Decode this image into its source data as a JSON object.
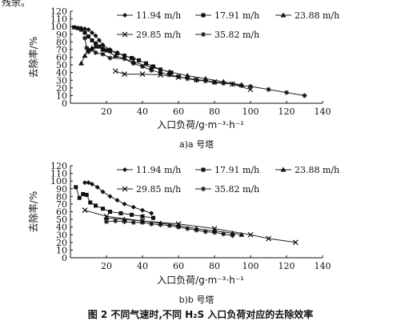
{
  "page": {
    "top_crop_text": "残余。",
    "figure_caption": "图 2    不同气速时,不同 H₂S 入口负荷对应的去除效率"
  },
  "chart_data": [
    {
      "type": "line",
      "subtitle": "a)a 号塔",
      "xlabel": "入口负荷/g·m⁻³·h⁻¹",
      "ylabel": "去除率/%",
      "xlim": [
        0,
        140
      ],
      "ylim": [
        0,
        120
      ],
      "xticks": [
        "20",
        "40",
        "60",
        "80",
        "100",
        "120",
        "140"
      ],
      "yticks": [
        "0",
        "10",
        "20",
        "30",
        "40",
        "50",
        "60",
        "70",
        "80",
        "90",
        "100",
        "110",
        "120"
      ],
      "legend_placement": "top-right",
      "series": [
        {
          "name": "11.94 m/h",
          "marker": "diamond",
          "x": [
            4,
            6,
            8,
            10,
            12,
            14,
            16,
            18,
            22,
            26,
            30,
            35
          ],
          "y": [
            98,
            98,
            97,
            96,
            92,
            88,
            82,
            76,
            70,
            66,
            62,
            58
          ]
        },
        {
          "name": "17.91 m/h",
          "marker": "square",
          "x": [
            2,
            4,
            6,
            8,
            10,
            12,
            14,
            16,
            18,
            20,
            22,
            26,
            30,
            34,
            38,
            42,
            46,
            50,
            56
          ],
          "y": [
            99,
            98,
            96,
            92,
            87,
            82,
            78,
            74,
            71,
            69,
            68,
            65,
            62,
            59,
            56,
            52,
            48,
            44,
            40
          ]
        },
        {
          "name": "23.88 m/h",
          "marker": "triangle",
          "x": [
            6,
            8,
            10,
            12,
            14,
            18,
            25,
            35,
            45,
            55,
            65,
            75,
            85,
            95
          ],
          "y": [
            52,
            62,
            70,
            72,
            74,
            70,
            62,
            54,
            47,
            41,
            36,
            32,
            28,
            24
          ]
        },
        {
          "name": "29.85 m/h",
          "marker": "x",
          "x": [
            25,
            30,
            40,
            50,
            60,
            70,
            80,
            90,
            100
          ],
          "y": [
            42,
            38,
            38,
            37,
            34,
            31,
            28,
            25,
            18
          ]
        },
        {
          "name": "35.82 m/h",
          "marker": "star",
          "x": [
            8,
            9,
            10,
            12,
            14,
            18,
            22,
            30,
            35,
            40,
            45,
            50,
            55,
            60,
            65,
            70,
            75,
            80,
            85,
            90,
            95,
            100,
            110,
            120,
            130
          ],
          "y": [
            85,
            72,
            67,
            70,
            66,
            64,
            59,
            58,
            52,
            48,
            43,
            40,
            37,
            35,
            32,
            30,
            29,
            27,
            26,
            25,
            23,
            22,
            18,
            14,
            10
          ]
        }
      ]
    },
    {
      "type": "line",
      "subtitle": "b)b 号塔",
      "xlabel": "入口负荷/g·m⁻³·h⁻¹",
      "ylabel": "去除率/%",
      "xlim": [
        0,
        140
      ],
      "ylim": [
        0,
        120
      ],
      "xticks": [
        "20",
        "40",
        "60",
        "80",
        "100",
        "120",
        "140"
      ],
      "yticks": [
        "0",
        "10",
        "20",
        "30",
        "40",
        "50",
        "60",
        "70",
        "80",
        "90",
        "100",
        "110",
        "120"
      ],
      "legend_placement": "top-right",
      "series": [
        {
          "name": "11.94 m/h",
          "marker": "diamond",
          "x": [
            8,
            10,
            12,
            15,
            18,
            22,
            26,
            30,
            35,
            40,
            45
          ],
          "y": [
            98,
            98,
            96,
            92,
            86,
            80,
            75,
            70,
            66,
            62,
            58
          ]
        },
        {
          "name": "17.91 m/h",
          "marker": "square",
          "x": [
            3,
            5,
            7,
            9,
            11,
            14,
            18,
            22,
            28,
            34,
            40,
            46
          ],
          "y": [
            92,
            78,
            83,
            82,
            72,
            68,
            64,
            60,
            58,
            56,
            54,
            52
          ]
        },
        {
          "name": "23.88 m/h",
          "marker": "triangle",
          "x": [
            20,
            30,
            40,
            50,
            60,
            70,
            80,
            90,
            95
          ],
          "y": [
            52,
            50,
            48,
            45,
            42,
            38,
            35,
            32,
            30
          ]
        },
        {
          "name": "29.85 m/h",
          "marker": "x",
          "x": [
            8,
            20,
            40,
            60,
            80,
            100,
            110,
            125
          ],
          "y": [
            62,
            54,
            48,
            44,
            38,
            30,
            25,
            20
          ]
        },
        {
          "name": "35.82 m/h",
          "marker": "star",
          "x": [
            20,
            25,
            30,
            35,
            40,
            45,
            50,
            55,
            60,
            65,
            70,
            75,
            80,
            85,
            90
          ],
          "y": [
            47,
            48,
            47,
            46,
            46,
            44,
            43,
            42,
            40,
            38,
            36,
            34,
            33,
            31,
            29
          ]
        }
      ]
    }
  ]
}
